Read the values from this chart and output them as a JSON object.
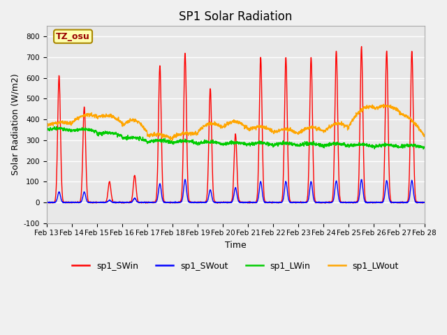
{
  "title": "SP1 Solar Radiation",
  "xlabel": "Time",
  "ylabel": "Solar Radiation (W/m2)",
  "ylim": [
    -100,
    850
  ],
  "yticks": [
    -100,
    0,
    100,
    200,
    300,
    400,
    500,
    600,
    700,
    800
  ],
  "xtick_labels": [
    "Feb 13",
    "Feb 14",
    "Feb 15",
    "Feb 16",
    "Feb 17",
    "Feb 18",
    "Feb 19",
    "Feb 20",
    "Feb 21",
    "Feb 22",
    "Feb 23",
    "Feb 24",
    "Feb 25",
    "Feb 26",
    "Feb 27",
    "Feb 28"
  ],
  "legend_labels": [
    "sp1_SWin",
    "sp1_SWout",
    "sp1_LWin",
    "sp1_LWout"
  ],
  "legend_colors": [
    "#ff0000",
    "#0000ff",
    "#00cc00",
    "#ffa500"
  ],
  "bg_color": "#f0f0f0",
  "plot_bg_color": "#e8e8e8",
  "tz_label": "TZ_osu",
  "n_days": 15,
  "ppd": 144,
  "SWin_peaks": [
    610,
    460,
    100,
    130,
    660,
    720,
    550,
    330,
    700,
    700,
    700,
    730,
    750,
    730,
    730
  ],
  "SWout_peaks": [
    50,
    50,
    10,
    20,
    90,
    110,
    60,
    70,
    100,
    100,
    100,
    105,
    110,
    105,
    105
  ],
  "title_fontsize": 12,
  "label_fontsize": 9,
  "tick_fontsize": 7.5,
  "legend_fontsize": 9
}
